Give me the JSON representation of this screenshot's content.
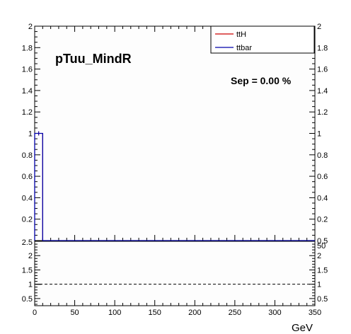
{
  "chart_data": [
    {
      "type": "line",
      "panel": "main",
      "title": "pTuu_MindR",
      "annotation": "Sep = 0.00 %",
      "xlim": [
        0,
        350
      ],
      "ylim": [
        0,
        2
      ],
      "yticks": [
        "0.2",
        "0.4",
        "0.6",
        "0.8",
        "1",
        "1.2",
        "1.4",
        "1.6",
        "1.8",
        "2"
      ],
      "yticks_right": [
        "0.5",
        "1",
        "1.2",
        "1.4",
        "1.6",
        "1.8",
        "2"
      ],
      "yright_zero": "0.5",
      "legend": {
        "position": "top-right",
        "entries": [
          {
            "label": "ttH",
            "color": "#cc0000"
          },
          {
            "label": "ttbar",
            "color": "#0000aa"
          }
        ]
      },
      "series": [
        {
          "name": "ttH",
          "color": "#cc0000",
          "bin_edges": [
            0,
            10,
            350
          ],
          "values": [
            1,
            0
          ]
        },
        {
          "name": "ttbar",
          "color": "#0000aa",
          "bin_edges": [
            0,
            10,
            350
          ],
          "values": [
            1,
            0
          ]
        }
      ]
    },
    {
      "type": "line",
      "panel": "ratio",
      "xlim": [
        0,
        350
      ],
      "ylim": [
        0.25,
        2.5
      ],
      "xticks": [
        "0",
        "50",
        "100",
        "150",
        "200",
        "250",
        "300",
        "350"
      ],
      "xlabel": "GeV",
      "yticks": [
        "0.5",
        "1",
        "1.5",
        "2",
        "2.5"
      ],
      "yticks_right": [
        "0.5",
        "1",
        "1.5",
        "2",
        "50"
      ],
      "reference_line": 1,
      "points": [
        {
          "x": 5,
          "y": 1
        }
      ]
    }
  ]
}
